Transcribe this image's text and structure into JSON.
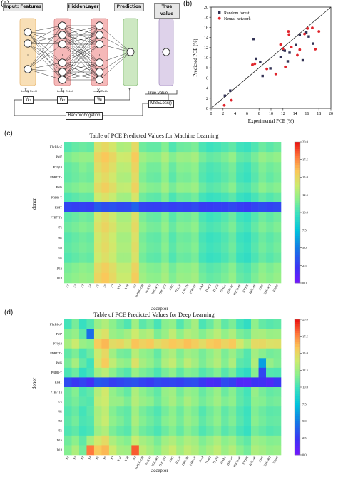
{
  "labels": {
    "a": "(a)",
    "b": "(b)",
    "c": "(c)",
    "d": "(d)"
  },
  "nn": {
    "input_header": "Input: Features",
    "hidden_header": "HiddenLayer",
    "prediction_header": "Prediction",
    "true_header": "True value",
    "x1": "X₁",
    "x2": "X₂",
    "xl": "Xₗ",
    "y": "Y",
    "relu": "Leaky ReLU",
    "w1": "W₁",
    "w2": "W₂",
    "wl": "Wₗ",
    "true_value": "True value",
    "mseloss": "MSELoss()",
    "backprop": "Backprobogation",
    "colors": {
      "input": "#f8dfb6",
      "hidden": "#f5b8b8",
      "prediction": "#cde8c2",
      "true": "#ded2ea",
      "head": "#e6e6e6"
    }
  },
  "chart_data": [
    {
      "type": "scatter",
      "xlabel": "Experimental PCE (%)",
      "ylabel": "Predicted PCE (%)",
      "xlim": [
        0,
        20
      ],
      "ylim": [
        0,
        20
      ],
      "x_ticks": [
        "0",
        "2",
        "4",
        "6",
        "8",
        "10",
        "12",
        "14",
        "16",
        "18",
        "20"
      ],
      "y_ticks": [
        "0",
        "2",
        "4",
        "6",
        "8",
        "10",
        "12",
        "14",
        "16",
        "18",
        "20"
      ],
      "legend_position": "top-left",
      "series": [
        {
          "name": "Random forest",
          "color": "#333355",
          "marker": "square",
          "x": [
            2.3,
            3.2,
            7.1,
            7.5,
            8.2,
            8.6,
            9.9,
            11.6,
            12.0,
            12.3,
            12.8,
            13.1,
            14.2,
            14.8,
            15.3,
            15.9,
            16.3,
            17.0
          ],
          "y": [
            2.5,
            3.5,
            13.7,
            9.8,
            9.2,
            6.4,
            7.9,
            10.1,
            11.6,
            11.4,
            9.3,
            11.0,
            12.5,
            14.5,
            9.5,
            15.0,
            14.2,
            12.8
          ]
        },
        {
          "name": "Neural network",
          "color": "#e0242b",
          "marker": "circle",
          "x": [
            2.2,
            3.4,
            6.9,
            7.3,
            9.3,
            10.8,
            11.6,
            12.0,
            12.4,
            12.9,
            13.0,
            13.4,
            14.4,
            14.8,
            15.6,
            16.1,
            16.9,
            17.4,
            18.0
          ],
          "y": [
            0.6,
            1.6,
            8.6,
            8.8,
            7.8,
            6.8,
            12.6,
            11.8,
            8.2,
            15.2,
            14.6,
            12.1,
            10.5,
            11.6,
            14.7,
            15.8,
            15.9,
            11.7,
            15.2
          ]
        }
      ],
      "reference_line": [
        [
          0,
          0
        ],
        [
          20,
          20
        ]
      ]
    },
    {
      "type": "heatmap",
      "title": "Table of PCE Predicted Values for Machine Learning",
      "xlabel": "acceptor",
      "ylabel": "donor",
      "rows": [
        "PTzBI-oF",
        "PM7",
        "PTQ10",
        "PDBT-Tk",
        "PM6",
        "PBDB-T",
        "P3HT",
        "PTB7-Th",
        "J71",
        "J61",
        "J52",
        "J51",
        "D16",
        "D18"
      ],
      "cols": [
        "Y1",
        "Y2",
        "Y3",
        "Y4",
        "Y5",
        "Y6",
        "Y7",
        "Y11",
        "Y18",
        "N3",
        "m-ITIC-OR",
        "m-ITIC",
        "ITIC-4Cl",
        "ITIC-2Cl",
        "IDIC",
        "ITIC-F",
        "ITIC-Th",
        "ITIC-2F",
        "IT-M",
        "IT-4Cl",
        "IT-2Cl",
        "IT-M-c",
        "IEIC-4F",
        "IEICO-4F",
        "IDTBR",
        "IDIC-4F",
        "IDIC",
        "IDIC-4Cl",
        "FINIC"
      ],
      "colorbar_ticks": [
        "0.0",
        "2.5",
        "5.0",
        "7.5",
        "10.0",
        "12.5",
        "15.0",
        "17.5",
        "20.0"
      ],
      "vmin": 0,
      "vmax": 20,
      "row_values": [
        [
          10.6,
          11.0,
          11.2,
          11.0,
          14.5,
          15.1,
          14.3,
          13.0,
          13.2,
          15.0,
          11.3,
          11.0,
          11.0,
          11.8,
          10.5,
          11.2,
          11.3,
          11.6,
          10.4,
          10.0,
          10.2,
          10.5,
          10.9,
          10.1,
          9.9,
          10.5,
          11.2,
          10.8,
          11.2
        ],
        [
          11.6,
          12.0,
          12.3,
          12.2,
          15.3,
          16.0,
          15.2,
          14.0,
          14.1,
          15.8,
          12.6,
          12.1,
          12.0,
          13.0,
          11.8,
          12.5,
          12.4,
          12.8,
          11.5,
          11.0,
          11.2,
          11.6,
          12.2,
          11.0,
          10.8,
          11.5,
          12.3,
          11.9,
          12.2
        ],
        [
          11.0,
          11.3,
          11.8,
          11.5,
          14.8,
          15.5,
          14.7,
          13.4,
          13.5,
          15.3,
          12.0,
          11.4,
          11.4,
          12.3,
          11.1,
          11.9,
          11.8,
          12.1,
          10.8,
          10.4,
          10.6,
          11.0,
          11.5,
          10.4,
          10.1,
          10.9,
          11.7,
          11.3,
          11.6
        ],
        [
          10.9,
          11.2,
          11.5,
          11.3,
          14.3,
          15.0,
          14.2,
          13.1,
          13.0,
          14.9,
          11.7,
          11.2,
          11.1,
          12.0,
          10.8,
          11.6,
          11.5,
          11.9,
          10.6,
          10.2,
          10.4,
          10.8,
          11.3,
          10.2,
          9.9,
          10.7,
          11.5,
          11.0,
          11.4
        ],
        [
          11.4,
          11.7,
          12.0,
          11.9,
          14.9,
          15.6,
          14.8,
          13.6,
          13.7,
          15.4,
          12.3,
          11.8,
          11.7,
          12.6,
          11.5,
          12.2,
          12.1,
          12.5,
          11.2,
          10.7,
          10.9,
          11.3,
          11.9,
          10.7,
          10.5,
          11.2,
          12.0,
          11.6,
          11.9
        ],
        [
          10.5,
          10.8,
          11.1,
          11.0,
          13.9,
          14.6,
          13.8,
          12.7,
          12.6,
          14.4,
          11.3,
          10.9,
          10.8,
          11.6,
          10.4,
          11.1,
          11.0,
          11.4,
          10.2,
          9.8,
          10.0,
          10.3,
          10.8,
          9.9,
          9.6,
          10.3,
          11.0,
          10.6,
          11.0
        ],
        [
          3.1,
          2.9,
          3.0,
          2.8,
          3.9,
          3.4,
          3.6,
          3.2,
          3.3,
          4.2,
          3.0,
          2.9,
          2.8,
          3.1,
          2.8,
          3.0,
          2.9,
          3.2,
          2.7,
          2.7,
          2.8,
          2.9,
          3.2,
          2.8,
          2.6,
          3.0,
          3.3,
          3.0,
          3.2
        ],
        [
          10.8,
          11.1,
          11.4,
          11.2,
          14.2,
          14.9,
          14.1,
          12.9,
          12.9,
          14.7,
          11.6,
          11.1,
          11.0,
          11.8,
          10.7,
          11.4,
          11.3,
          11.7,
          10.4,
          10.0,
          10.2,
          10.6,
          11.2,
          10.1,
          9.8,
          10.6,
          11.3,
          10.9,
          11.3
        ],
        [
          11.2,
          11.5,
          11.8,
          11.6,
          14.6,
          15.3,
          14.5,
          13.3,
          13.3,
          15.0,
          12.0,
          11.5,
          11.4,
          12.2,
          11.1,
          11.8,
          11.7,
          12.1,
          10.8,
          10.4,
          10.6,
          11.0,
          11.6,
          10.5,
          10.2,
          11.0,
          11.7,
          11.3,
          11.7
        ],
        [
          10.7,
          11.0,
          11.3,
          11.1,
          14.1,
          14.8,
          14.0,
          12.8,
          12.8,
          14.6,
          11.5,
          11.0,
          10.9,
          11.7,
          10.6,
          11.3,
          11.2,
          11.6,
          10.3,
          9.9,
          10.1,
          10.5,
          11.1,
          10.0,
          9.7,
          10.5,
          11.2,
          10.8,
          11.2
        ],
        [
          10.9,
          11.2,
          11.5,
          11.3,
          14.3,
          15.0,
          14.2,
          13.0,
          13.0,
          14.8,
          11.7,
          11.2,
          11.1,
          11.9,
          10.8,
          11.5,
          11.4,
          11.8,
          10.5,
          10.1,
          10.3,
          10.7,
          11.3,
          10.2,
          9.9,
          10.7,
          11.4,
          11.0,
          11.4
        ],
        [
          10.6,
          10.9,
          11.2,
          11.0,
          14.0,
          14.7,
          13.9,
          12.7,
          12.7,
          14.5,
          11.4,
          10.9,
          10.8,
          11.6,
          10.5,
          11.2,
          11.1,
          11.5,
          10.2,
          9.8,
          10.0,
          10.4,
          11.0,
          9.9,
          9.6,
          10.4,
          11.1,
          10.7,
          11.1
        ],
        [
          11.5,
          11.8,
          12.1,
          11.9,
          14.9,
          15.6,
          14.8,
          13.6,
          13.6,
          15.3,
          12.3,
          11.8,
          11.7,
          12.5,
          11.4,
          12.1,
          12.0,
          12.4,
          11.1,
          10.7,
          10.9,
          11.3,
          11.9,
          10.8,
          10.5,
          11.3,
          12.0,
          11.6,
          12.0
        ],
        [
          11.8,
          12.1,
          12.4,
          12.2,
          15.3,
          16.0,
          15.1,
          13.9,
          13.9,
          15.7,
          12.6,
          12.1,
          12.0,
          12.8,
          11.7,
          12.4,
          12.3,
          12.7,
          11.4,
          11.0,
          11.2,
          11.6,
          12.2,
          11.1,
          10.8,
          11.6,
          12.3,
          11.9,
          12.3
        ]
      ]
    },
    {
      "type": "heatmap",
      "title": "Table of PCE Predicted Values for Deep Learning",
      "xlabel": "acceptor",
      "ylabel": "donor",
      "rows": [
        "PTzBI-oF",
        "PM7",
        "PTQ10",
        "PDBT-Tk",
        "PM6",
        "PBDB-T",
        "P3HT",
        "PTB7-Th",
        "J71",
        "J61",
        "J52",
        "J51",
        "D16",
        "D18"
      ],
      "cols": [
        "Y1",
        "Y2",
        "Y3",
        "Y4",
        "Y5",
        "Y6",
        "Y7",
        "Y11",
        "Y18",
        "N3",
        "m-ITIC-OR",
        "m-ITIC",
        "ITIC-4Cl",
        "ITIC-2Cl",
        "IDIC",
        "ITIC-F",
        "ITIC-Th",
        "ITIC-2F",
        "IT-M",
        "IT-4Cl",
        "IT-2Cl",
        "IT-M-c",
        "IEIC-4F",
        "IEICO-4F",
        "IDTBR",
        "IDIC-4F",
        "IDIC",
        "IDIC-4Cl",
        "FINIC"
      ],
      "colorbar_ticks": [
        "0.0",
        "2.5",
        "5.0",
        "7.5",
        "10.0",
        "12.5",
        "15.0",
        "17.5",
        "20.0"
      ],
      "vmin": 0,
      "vmax": 20,
      "row_values": [
        [
          10.2,
          11.5,
          9.8,
          10.6,
          12.4,
          13.1,
          12.0,
          11.2,
          10.5,
          12.6,
          10.8,
          11.4,
          10.3,
          11.9,
          12.2,
          10.6,
          11.7,
          12.8,
          10.4,
          11.1,
          12.3,
          10.9,
          11.6,
          10.2,
          9.6,
          12.1,
          11.0,
          10.7,
          10.9
        ],
        [
          11.8,
          12.3,
          10.9,
          4.6,
          13.8,
          14.6,
          12.5,
          12.1,
          12.7,
          14.0,
          12.9,
          13.3,
          11.6,
          12.4,
          13.6,
          12.1,
          13.2,
          12.8,
          11.8,
          12.6,
          13.4,
          12.2,
          13.0,
          11.6,
          11.2,
          12.8,
          12.9,
          12.4,
          12.5
        ],
        [
          12.8,
          13.9,
          12.4,
          12.0,
          15.8,
          16.4,
          14.9,
          15.2,
          14.4,
          16.1,
          15.5,
          15.9,
          14.8,
          15.4,
          16.0,
          15.6,
          16.2,
          15.7,
          14.9,
          15.8,
          16.1,
          15.3,
          15.9,
          14.2,
          12.9,
          15.0,
          15.1,
          14.6,
          14.7
        ],
        [
          10.9,
          11.6,
          10.4,
          11.2,
          13.9,
          15.1,
          12.6,
          11.5,
          11.3,
          13.3,
          12.2,
          11.9,
          11.0,
          12.5,
          13.0,
          11.7,
          12.6,
          12.3,
          11.5,
          12.1,
          12.9,
          11.6,
          12.4,
          11.4,
          10.6,
          12.7,
          11.9,
          11.4,
          11.6
        ],
        [
          11.5,
          12.8,
          11.0,
          10.1,
          14.3,
          15.8,
          13.6,
          12.4,
          12.0,
          14.6,
          12.8,
          12.2,
          11.4,
          13.0,
          13.7,
          12.1,
          13.5,
          12.7,
          11.6,
          12.4,
          13.2,
          11.8,
          13.0,
          10.8,
          10.5,
          13.1,
          6.4,
          12.3,
          11.7
        ],
        [
          10.4,
          11.2,
          9.6,
          10.3,
          12.6,
          13.4,
          12.0,
          11.1,
          10.6,
          12.4,
          11.6,
          11.2,
          10.4,
          11.5,
          12.1,
          10.9,
          11.8,
          11.6,
          10.6,
          11.1,
          11.8,
          10.7,
          11.5,
          10.0,
          9.5,
          11.9,
          3.1,
          10.6,
          10.5
        ],
        [
          3.3,
          2.6,
          3.0,
          2.2,
          3.8,
          3.6,
          2.8,
          3.1,
          3.4,
          3.6,
          3.0,
          2.7,
          3.2,
          3.0,
          3.1,
          2.9,
          3.3,
          3.4,
          2.6,
          1.9,
          2.1,
          3.3,
          2.9,
          1.6,
          1.5,
          2.4,
          2.2,
          1.7,
          2.6
        ],
        [
          11.1,
          11.8,
          10.5,
          10.9,
          13.2,
          14.2,
          12.2,
          11.6,
          11.0,
          13.0,
          12.0,
          11.5,
          10.9,
          12.3,
          12.6,
          11.4,
          12.3,
          12.0,
          11.1,
          11.7,
          12.4,
          11.2,
          11.9,
          10.8,
          10.2,
          12.3,
          11.5,
          11.0,
          11.2
        ],
        [
          11.0,
          11.5,
          10.8,
          10.6,
          13.6,
          14.0,
          12.4,
          12.3,
          11.6,
          13.2,
          12.4,
          12.0,
          11.2,
          12.1,
          12.8,
          11.8,
          12.9,
          12.2,
          11.4,
          11.9,
          12.6,
          11.7,
          12.1,
          10.9,
          10.4,
          12.0,
          11.8,
          11.3,
          11.5
        ],
        [
          10.6,
          11.1,
          10.2,
          10.8,
          12.9,
          13.6,
          11.8,
          11.2,
          10.9,
          12.6,
          11.5,
          11.0,
          10.5,
          11.4,
          12.0,
          11.2,
          12.1,
          11.6,
          10.6,
          11.3,
          11.9,
          10.9,
          11.5,
          10.5,
          10.0,
          11.7,
          11.2,
          10.8,
          10.9
        ],
        [
          10.8,
          11.4,
          10.4,
          10.6,
          13.0,
          13.8,
          12.1,
          11.6,
          11.0,
          12.9,
          11.8,
          11.3,
          10.8,
          11.8,
          12.2,
          11.4,
          12.4,
          11.9,
          10.9,
          11.5,
          12.1,
          11.1,
          11.7,
          10.7,
          10.1,
          11.9,
          11.4,
          11.0,
          11.1
        ],
        [
          10.5,
          10.9,
          10.1,
          10.4,
          12.5,
          13.1,
          11.6,
          11.0,
          10.7,
          12.3,
          11.3,
          10.9,
          10.4,
          11.2,
          11.8,
          11.0,
          11.9,
          11.4,
          10.5,
          11.0,
          11.6,
          10.7,
          11.2,
          10.3,
          9.8,
          11.4,
          11.0,
          10.6,
          10.8
        ],
        [
          11.3,
          12.0,
          10.9,
          12.8,
          14.2,
          15.0,
          13.0,
          12.2,
          11.8,
          13.8,
          12.8,
          12.3,
          11.5,
          12.6,
          13.1,
          12.2,
          13.0,
          12.7,
          11.7,
          12.3,
          13.0,
          12.0,
          12.5,
          11.4,
          10.9,
          12.5,
          12.2,
          11.8,
          11.9
        ],
        [
          11.8,
          13.0,
          11.4,
          18.0,
          15.9,
          16.4,
          14.0,
          12.8,
          12.6,
          18.6,
          13.5,
          12.8,
          12.0,
          13.2,
          13.9,
          12.7,
          13.6,
          13.1,
          12.2,
          12.9,
          13.6,
          12.5,
          13.2,
          12.0,
          11.4,
          13.0,
          12.7,
          12.2,
          12.4
        ]
      ]
    }
  ]
}
